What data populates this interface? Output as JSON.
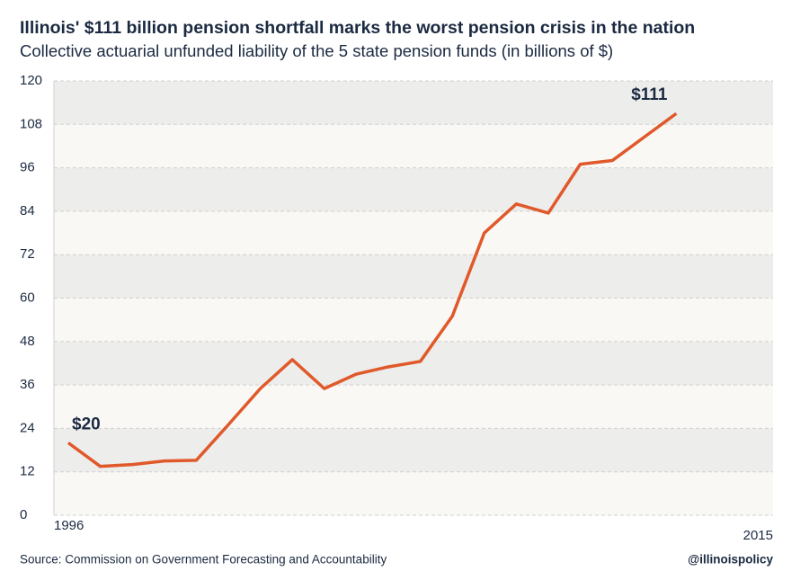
{
  "chart_data": {
    "type": "line",
    "title": "Illinois' $111 billion pension shortfall marks the worst pension crisis in the nation",
    "subtitle": "Collective actuarial unfunded liability of the 5 state pension funds (in billions of $)",
    "categories": [
      "1996",
      null,
      null,
      null,
      null,
      null,
      null,
      null,
      null,
      null,
      null,
      null,
      null,
      null,
      null,
      null,
      null,
      null,
      null,
      "2015"
    ],
    "series": [
      {
        "name": "Unfunded liability",
        "color": "#e0592a",
        "values": [
          20,
          13.5,
          14,
          15,
          15.2,
          25,
          35,
          43,
          35,
          39,
          41,
          42.5,
          55,
          78,
          86,
          83.5,
          97,
          98,
          104.5,
          111
        ],
        "value_labels": [
          "$20",
          null,
          null,
          null,
          null,
          null,
          null,
          null,
          null,
          null,
          null,
          null,
          null,
          null,
          null,
          null,
          null,
          null,
          null,
          "$111"
        ]
      }
    ],
    "ylim": [
      0,
      120
    ],
    "yticks": [
      0,
      12,
      24,
      36,
      48,
      60,
      72,
      84,
      96,
      108,
      120
    ],
    "grid": true,
    "source": "Source: Commission on Government Forecasting and Accountability",
    "credit": "@illinoispolicy"
  }
}
